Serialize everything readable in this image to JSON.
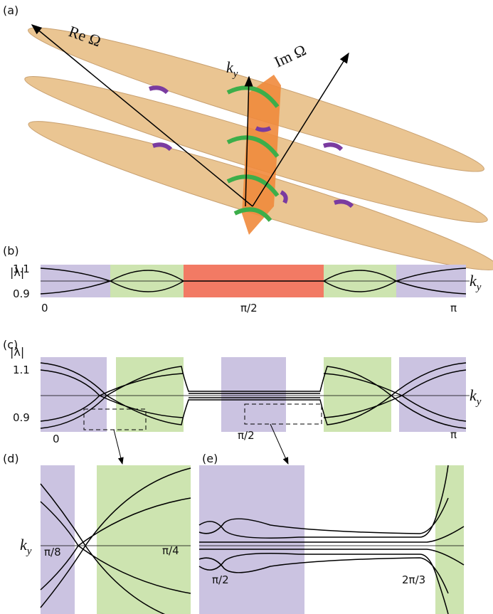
{
  "panels": {
    "a": {
      "label": "(a)",
      "re_axis": "Re Ω",
      "im_axis": "Im Ω",
      "ky": {
        "symbol": "k",
        "subscript": "y"
      }
    },
    "b": {
      "label": "(b)",
      "y_axis": "|λ|",
      "yticks": [
        "1.1",
        "0.9"
      ],
      "xticks": [
        "0",
        "π/2",
        "π"
      ],
      "x_axis": {
        "symbol": "k",
        "subscript": "y"
      }
    },
    "c": {
      "label": "(c)",
      "y_axis": "|λ|",
      "yticks": [
        "1.1",
        "0.9"
      ],
      "xticks": [
        "0",
        "π/2",
        "π"
      ],
      "x_axis": {
        "symbol": "k",
        "subscript": "y"
      }
    },
    "d": {
      "label": "(d)",
      "x_axis": {
        "symbol": "k",
        "subscript": "y"
      },
      "xticks": [
        "π/8",
        "π/4"
      ]
    },
    "e": {
      "label": "(e)",
      "xticks": [
        "π/2",
        "2π/3"
      ]
    }
  }
}
